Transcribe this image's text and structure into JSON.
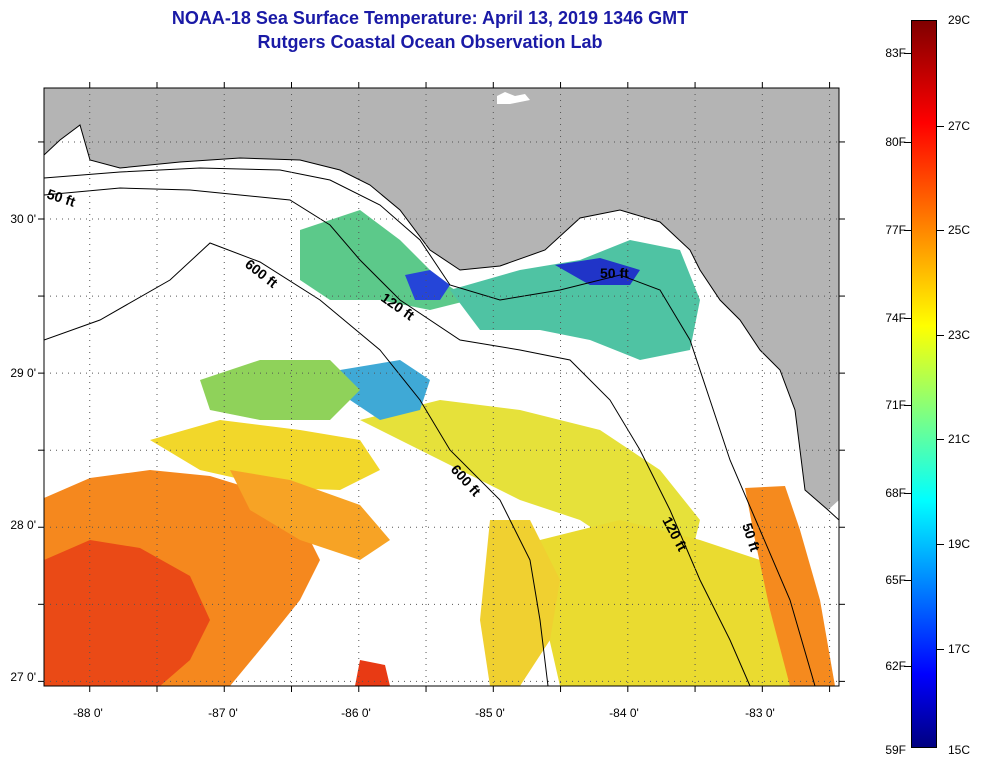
{
  "title": {
    "line1": "NOAA-18 Sea Surface Temperature:  April 13, 2019 1346 GMT",
    "line2": "Rutgers Coastal Ocean Observation Lab"
  },
  "map": {
    "lat_ticks": [
      {
        "value": 30,
        "label": "30 0'"
      },
      {
        "value": 29,
        "label": "29 0'"
      },
      {
        "value": 28,
        "label": "28 0'"
      },
      {
        "value": 27,
        "label": "27 0'"
      }
    ],
    "lon_ticks": [
      {
        "value": -88,
        "label": "-88 0'"
      },
      {
        "value": -87,
        "label": "-87 0'"
      },
      {
        "value": -86,
        "label": "-86 0'"
      },
      {
        "value": -85,
        "label": "-85 0'"
      },
      {
        "value": -84,
        "label": "-84 0'"
      },
      {
        "value": -83,
        "label": "-83 0'"
      }
    ],
    "contour_labels": [
      {
        "id": "50ft-west",
        "text": "50 ft"
      },
      {
        "id": "600ft-north",
        "text": "600 ft"
      },
      {
        "id": "120ft-north",
        "text": "120 ft"
      },
      {
        "id": "50ft-bigbend",
        "text": "50 ft"
      },
      {
        "id": "600ft-south",
        "text": "600 ft"
      },
      {
        "id": "120ft-south",
        "text": "120 ft"
      },
      {
        "id": "50ft-south",
        "text": "50 ft"
      }
    ],
    "colors": {
      "land": "#b4b4b4",
      "ocean_nodata": "#ffffff",
      "grid": "#555555"
    }
  },
  "colorbar": {
    "f_labels": [
      "83F",
      "80F",
      "77F",
      "74F",
      "71F",
      "68F",
      "65F",
      "62F",
      "59F"
    ],
    "c_labels": [
      "29C",
      "27C",
      "25C",
      "23C",
      "21C",
      "19C",
      "17C",
      "15C"
    ],
    "min_c": 15,
    "max_c": 29,
    "colormap": "jet"
  }
}
